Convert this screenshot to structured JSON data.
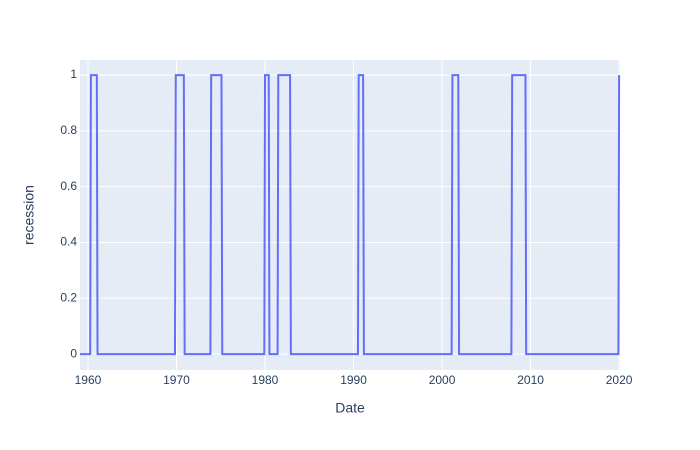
{
  "chart_data": {
    "type": "line",
    "x_label": "Date",
    "y_label": "recession",
    "x": [
      1959.1,
      1960.25,
      1960.33,
      1961.0,
      1961.08,
      1969.83,
      1969.92,
      1970.83,
      1970.92,
      1973.83,
      1973.92,
      1975.08,
      1975.17,
      1979.92,
      1980.0,
      1980.42,
      1980.5,
      1981.42,
      1981.5,
      1982.83,
      1982.92,
      1990.5,
      1990.58,
      1991.08,
      1991.17,
      2001.08,
      2001.17,
      2001.83,
      2001.92,
      2007.83,
      2007.92,
      2009.42,
      2009.5,
      2019.92,
      2020.0
    ],
    "series": [
      {
        "name": "recession",
        "color": "#636efa",
        "values": [
          0,
          0,
          1,
          1,
          0,
          0,
          1,
          1,
          0,
          0,
          1,
          1,
          0,
          0,
          1,
          1,
          0,
          0,
          1,
          1,
          0,
          0,
          1,
          1,
          0,
          0,
          1,
          1,
          0,
          0,
          1,
          1,
          0,
          0,
          1
        ]
      }
    ],
    "xlim": [
      1959.1,
      2020.1
    ],
    "xticks": [
      1960,
      1970,
      1980,
      1990,
      2000,
      2010,
      2020
    ],
    "ylim": [
      -0.057,
      1.054
    ],
    "yticks": [
      0,
      0.2,
      0.4,
      0.6,
      0.8,
      1
    ],
    "grid": true,
    "background": "#e5ecf6"
  }
}
